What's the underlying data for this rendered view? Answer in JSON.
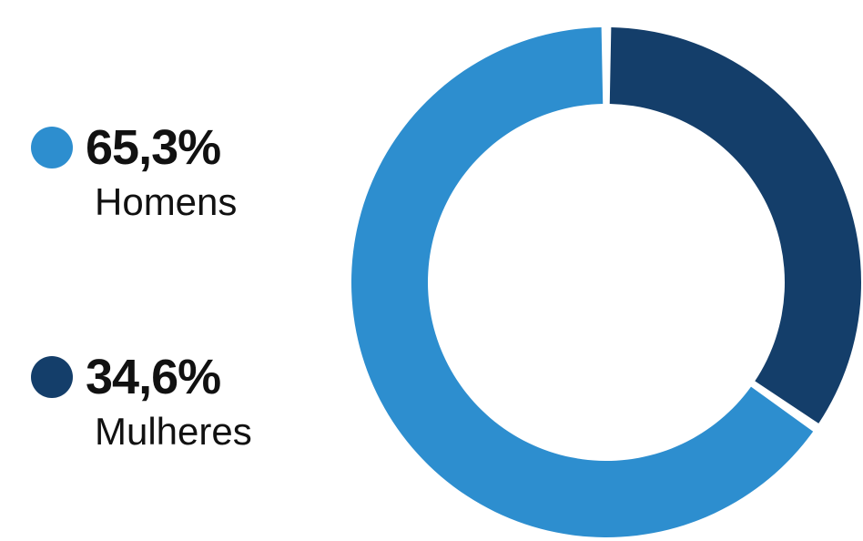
{
  "chart_data": {
    "type": "pie",
    "style": "donut",
    "title": "",
    "legend_position": "left",
    "series": [
      {
        "name": "Homens",
        "label": "65,3%",
        "value": 65.3,
        "color": "#2d8ecf"
      },
      {
        "name": "Mulheres",
        "label": "34,6%",
        "value": 34.6,
        "color": "#143e6a"
      }
    ]
  }
}
